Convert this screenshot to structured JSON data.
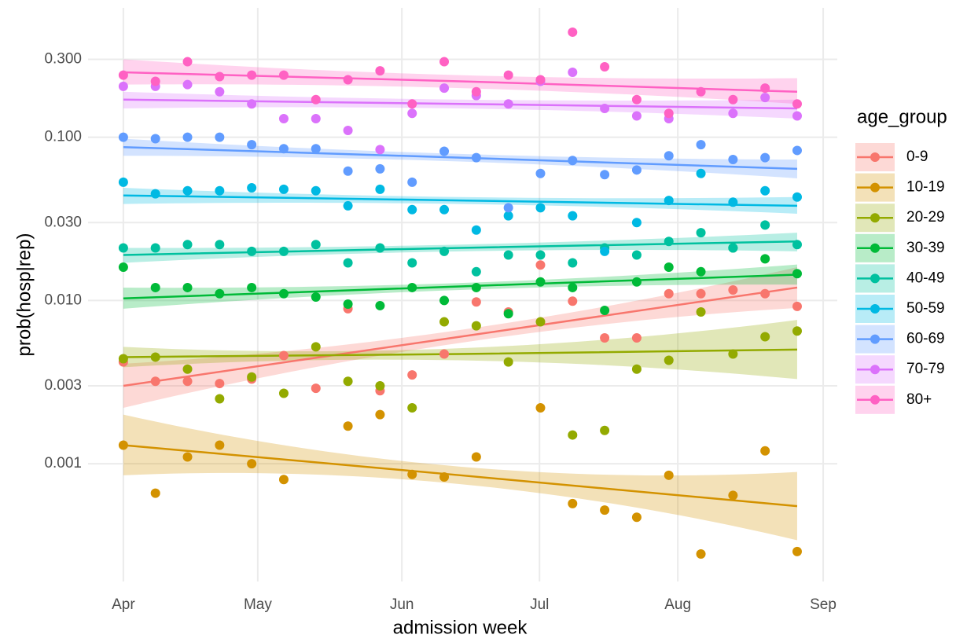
{
  "chart_data": {
    "type": "scatter",
    "x_label": "admission week",
    "y_label": "prob(hosp|rep)",
    "legend_title": "age_group",
    "log_y": true,
    "grid": true,
    "legend": "right",
    "xlim": [
      -1.1,
      22.25
    ],
    "ylim": [
      0.00019,
      0.62
    ],
    "xticks": [
      {
        "value": 0,
        "label": "Apr"
      },
      {
        "value": 4.19,
        "label": "May"
      },
      {
        "value": 8.68,
        "label": "Jun"
      },
      {
        "value": 12.97,
        "label": "Jul"
      },
      {
        "value": 17.28,
        "label": "Aug"
      },
      {
        "value": 21.81,
        "label": "Sep"
      }
    ],
    "yticks": [
      {
        "value": 0.3,
        "label": "0.300"
      },
      {
        "value": 0.1,
        "label": "0.100"
      },
      {
        "value": 0.03,
        "label": "0.030"
      },
      {
        "value": 0.01,
        "label": "0.010"
      },
      0.003,
      0.001
    ],
    "x": [
      0,
      1,
      2,
      3,
      4,
      5,
      6,
      7,
      8,
      9,
      10,
      11,
      12,
      13,
      14,
      15,
      16,
      17,
      18,
      19,
      20,
      21
    ],
    "fit_x": [
      0,
      10.5,
      21
    ],
    "series": [
      {
        "name": "0-9",
        "color": "#F8766D",
        "values": [
          0.0042,
          0.0032,
          0.0032,
          0.0031,
          0.0033,
          0.0046,
          0.0029,
          0.0089,
          0.0028,
          0.0035,
          0.0047,
          0.0098,
          0.0085,
          0.0165,
          0.0099,
          0.0059,
          0.0059,
          0.011,
          0.011,
          0.0116,
          0.011,
          0.0092
        ],
        "fit": [
          0.003,
          0.006,
          0.012
        ],
        "fit_low": [
          0.0022,
          0.0055,
          0.009
        ],
        "fit_high": [
          0.0041,
          0.0066,
          0.016
        ]
      },
      {
        "name": "10-19",
        "color": "#D39200",
        "values": [
          0.0013,
          0.00066,
          0.0011,
          0.0013,
          0.001,
          0.0008,
          null,
          0.0017,
          0.002,
          0.00086,
          0.00083,
          0.0011,
          null,
          0.0022,
          0.00057,
          0.00052,
          0.00047,
          0.00085,
          0.00028,
          0.00064,
          0.0012,
          0.00029
        ],
        "fit": [
          0.0013,
          0.00085,
          0.00055
        ],
        "fit_low": [
          0.00085,
          0.00075,
          0.00034
        ],
        "fit_high": [
          0.002,
          0.00096,
          0.00089
        ]
      },
      {
        "name": "20-29",
        "color": "#93AA00",
        "values": [
          0.0044,
          0.0045,
          0.0038,
          0.0025,
          0.0034,
          0.0027,
          0.0052,
          0.0032,
          0.003,
          0.0022,
          0.0074,
          0.007,
          0.0042,
          0.0074,
          0.0015,
          0.0016,
          0.0038,
          0.0043,
          0.0085,
          0.0047,
          0.006,
          0.0065
        ],
        "fit": [
          0.0045,
          0.0047,
          0.005
        ],
        "fit_low": [
          0.0039,
          0.0043,
          0.0033
        ],
        "fit_high": [
          0.0052,
          0.0051,
          0.0076
        ]
      },
      {
        "name": "30-39",
        "color": "#00BA38",
        "values": [
          0.016,
          0.012,
          0.012,
          0.011,
          0.012,
          0.011,
          0.0105,
          0.0095,
          0.0093,
          0.012,
          0.01,
          0.012,
          0.0083,
          0.013,
          0.012,
          0.0087,
          0.013,
          0.016,
          0.015,
          0.021,
          0.018,
          0.0146
        ],
        "fit": [
          0.0103,
          0.0122,
          0.0144
        ],
        "fit_low": [
          0.0089,
          0.0116,
          0.0125
        ],
        "fit_high": [
          0.012,
          0.0128,
          0.0166
        ]
      },
      {
        "name": "40-49",
        "color": "#00C19F",
        "values": [
          0.021,
          0.021,
          0.022,
          0.022,
          0.02,
          0.02,
          0.022,
          0.017,
          0.021,
          0.017,
          0.02,
          0.015,
          0.019,
          0.019,
          0.017,
          0.021,
          0.019,
          0.023,
          0.026,
          0.021,
          0.029,
          0.022
        ],
        "fit": [
          0.019,
          0.021,
          0.023
        ],
        "fit_low": [
          0.017,
          0.02,
          0.02
        ],
        "fit_high": [
          0.021,
          0.022,
          0.026
        ]
      },
      {
        "name": "50-59",
        "color": "#00B9E3",
        "values": [
          0.053,
          0.045,
          0.047,
          0.047,
          0.049,
          0.048,
          0.047,
          0.038,
          0.048,
          0.036,
          0.036,
          0.027,
          0.033,
          0.037,
          0.033,
          0.02,
          0.03,
          0.041,
          0.06,
          0.04,
          0.047,
          0.043
        ],
        "fit": [
          0.044,
          0.041,
          0.038
        ],
        "fit_low": [
          0.039,
          0.039,
          0.034
        ],
        "fit_high": [
          0.049,
          0.043,
          0.043
        ]
      },
      {
        "name": "60-69",
        "color": "#619CFF",
        "values": [
          0.1,
          0.098,
          0.1,
          0.1,
          0.09,
          0.085,
          0.085,
          0.062,
          0.064,
          0.053,
          0.082,
          0.075,
          0.037,
          0.06,
          0.072,
          0.059,
          0.063,
          0.077,
          0.09,
          0.073,
          0.075,
          0.083
        ],
        "fit": [
          0.087,
          0.075,
          0.064
        ],
        "fit_low": [
          0.077,
          0.071,
          0.056
        ],
        "fit_high": [
          0.098,
          0.079,
          0.073
        ]
      },
      {
        "name": "70-79",
        "color": "#DB72FB",
        "values": [
          0.205,
          0.205,
          0.21,
          0.19,
          0.16,
          0.13,
          0.13,
          0.11,
          0.084,
          0.14,
          0.2,
          0.18,
          0.16,
          0.22,
          0.25,
          0.15,
          0.135,
          0.13,
          null,
          0.14,
          0.175,
          0.135
        ],
        "fit": [
          0.17,
          0.16,
          0.15
        ],
        "fit_low": [
          0.15,
          0.15,
          0.13
        ],
        "fit_high": [
          0.19,
          0.17,
          0.17
        ]
      },
      {
        "name": "80+",
        "color": "#FF61C3",
        "values": [
          0.24,
          0.22,
          0.29,
          0.235,
          0.24,
          0.24,
          0.17,
          0.225,
          0.255,
          0.16,
          0.29,
          0.19,
          0.24,
          0.225,
          0.44,
          0.27,
          0.17,
          0.14,
          0.19,
          0.17,
          0.2,
          0.16
        ],
        "fit": [
          0.25,
          0.22,
          0.19
        ],
        "fit_low": [
          0.21,
          0.2,
          0.16
        ],
        "fit_high": [
          0.3,
          0.24,
          0.23
        ]
      }
    ]
  }
}
